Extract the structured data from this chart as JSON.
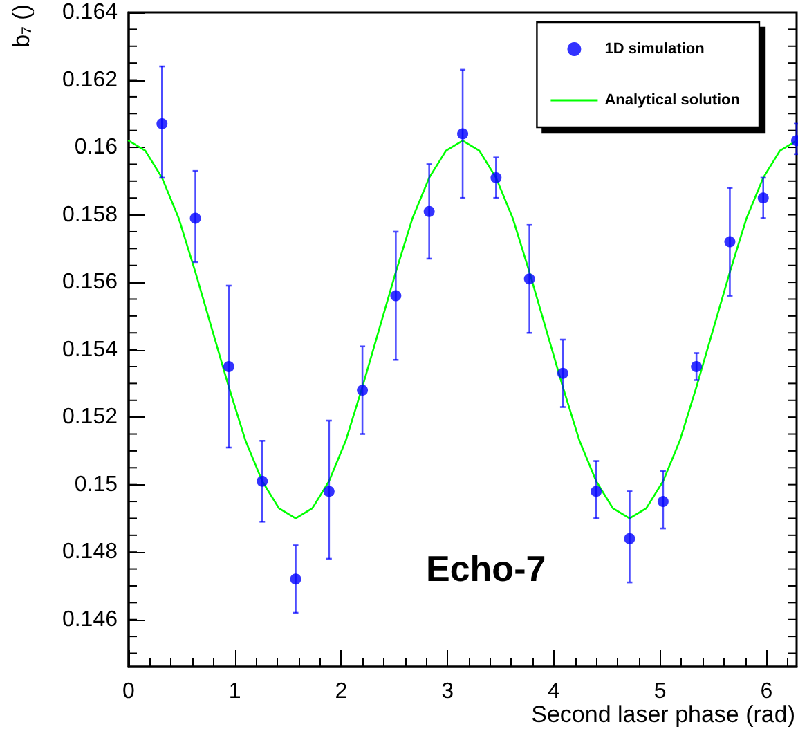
{
  "chart_data": {
    "type": "scatter",
    "xlabel": "Second laser phase (rad)",
    "ylabel": "b₇ ()",
    "annotations": [
      "Echo-7"
    ],
    "xlim": [
      0,
      6.283
    ],
    "ylim": [
      0.1446,
      0.164
    ],
    "xticks": [
      0,
      1,
      2,
      3,
      4,
      5,
      6
    ],
    "yticks": [
      0.146,
      0.148,
      {
        "value": 0.15,
        "label": "0.15"
      },
      0.152,
      0.154,
      0.156,
      0.158,
      {
        "value": 0.16,
        "label": "0.16"
      },
      0.162,
      0.164
    ],
    "grid": false,
    "legend": "top right",
    "marker": "circle",
    "series": [
      {
        "name": "1D simulation",
        "type": "scatter",
        "color": "#0000ff",
        "x": [
          0.314,
          0.628,
          0.942,
          1.257,
          1.571,
          1.885,
          2.199,
          2.513,
          2.827,
          3.142,
          3.456,
          3.77,
          4.084,
          4.398,
          4.712,
          5.027,
          5.341,
          5.655,
          5.969,
          6.283
        ],
        "values": [
          0.1607,
          0.1579,
          0.1535,
          0.1501,
          0.1472,
          0.1498,
          0.1528,
          0.1556,
          0.1581,
          0.1604,
          0.1591,
          0.1561,
          0.1533,
          0.1498,
          0.1484,
          0.1495,
          0.1535,
          0.1572,
          0.1585,
          0.1602
        ],
        "errors": [
          [
            0.1591,
            0.1624
          ],
          [
            0.1566,
            0.1593
          ],
          [
            0.1511,
            0.1559
          ],
          [
            0.1489,
            0.1513
          ],
          [
            0.1462,
            0.1482
          ],
          [
            0.1478,
            0.1519
          ],
          [
            0.1515,
            0.1541
          ],
          [
            0.1537,
            0.1575
          ],
          [
            0.1567,
            0.1595
          ],
          [
            0.1585,
            0.1623
          ],
          [
            0.1585,
            0.1597
          ],
          [
            0.1545,
            0.1577
          ],
          [
            0.1523,
            0.1543
          ],
          [
            0.149,
            0.1507
          ],
          [
            0.1471,
            0.1498
          ],
          [
            0.1487,
            0.1504
          ],
          [
            0.1531,
            0.1539
          ],
          [
            0.1556,
            0.1588
          ],
          [
            0.1579,
            0.1591
          ],
          [
            0.1598,
            0.1607
          ]
        ]
      },
      {
        "name": "Analytical solution",
        "type": "line",
        "color": "#00ff00",
        "marker": "none",
        "line_style": "solid",
        "x": [
          0,
          0.157,
          0.314,
          0.471,
          0.628,
          0.785,
          0.942,
          1.1,
          1.257,
          1.414,
          1.571,
          1.728,
          1.885,
          2.042,
          2.199,
          2.356,
          2.513,
          2.67,
          2.827,
          2.985,
          3.142,
          3.299,
          3.456,
          3.613,
          3.77,
          3.927,
          4.084,
          4.241,
          4.398,
          4.555,
          4.712,
          4.869,
          5.027,
          5.184,
          5.341,
          5.498,
          5.655,
          5.812,
          5.969,
          6.126,
          6.283
        ],
        "values": [
          0.1602,
          0.1599,
          0.1591,
          0.1579,
          0.1563,
          0.1546,
          0.1529,
          0.1513,
          0.1501,
          0.1493,
          0.149,
          0.1493,
          0.1501,
          0.1513,
          0.1529,
          0.1546,
          0.1563,
          0.1579,
          0.1591,
          0.1599,
          0.1602,
          0.1599,
          0.1591,
          0.1579,
          0.1563,
          0.1546,
          0.1529,
          0.1513,
          0.1501,
          0.1493,
          0.149,
          0.1493,
          0.1501,
          0.1513,
          0.1529,
          0.1546,
          0.1563,
          0.1579,
          0.1591,
          0.1599,
          0.1602
        ]
      }
    ]
  }
}
